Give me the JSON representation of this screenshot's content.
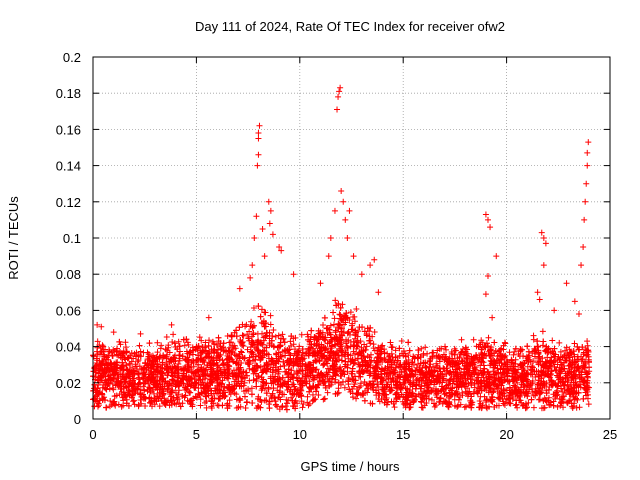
{
  "chart_data": {
    "type": "scatter",
    "title": "Day 111 of 2024, Rate Of TEC Index for receiver ofw2",
    "xlabel": "GPS time / hours",
    "ylabel": "ROTI / TECUs",
    "xlim": [
      0,
      25
    ],
    "ylim": [
      0,
      0.2
    ],
    "xticks": [
      "0",
      "5",
      "10",
      "15",
      "20",
      "25"
    ],
    "yticks": [
      "0",
      "0.02",
      "0.04",
      "0.06",
      "0.08",
      "0.1",
      "0.12",
      "0.14",
      "0.16",
      "0.18",
      "0.2"
    ],
    "grid": true,
    "marker": "+",
    "series_color": "#ff0000",
    "x_range_observed": [
      0,
      24
    ],
    "baseline_profile": {
      "x": [
        0,
        1,
        2,
        3,
        4,
        5,
        6,
        7,
        7.5,
        8,
        8.5,
        9,
        10,
        11,
        11.5,
        12,
        12.5,
        13,
        13.5,
        14,
        15,
        16,
        17,
        18,
        19,
        20,
        21,
        21.5,
        22,
        23,
        24
      ],
      "upper": [
        0.042,
        0.04,
        0.035,
        0.035,
        0.04,
        0.042,
        0.045,
        0.05,
        0.06,
        0.065,
        0.06,
        0.05,
        0.045,
        0.055,
        0.065,
        0.07,
        0.065,
        0.055,
        0.05,
        0.04,
        0.035,
        0.035,
        0.035,
        0.04,
        0.045,
        0.04,
        0.04,
        0.045,
        0.04,
        0.04,
        0.04
      ],
      "lower": [
        0.005,
        0.006,
        0.007,
        0.007,
        0.007,
        0.006,
        0.006,
        0.006,
        0.006,
        0.006,
        0.006,
        0.005,
        0.005,
        0.01,
        0.012,
        0.012,
        0.012,
        0.01,
        0.008,
        0.007,
        0.006,
        0.006,
        0.006,
        0.006,
        0.006,
        0.006,
        0.006,
        0.006,
        0.006,
        0.006,
        0.006
      ]
    },
    "outliers": [
      {
        "x": 0.2,
        "y": 0.052
      },
      {
        "x": 0.4,
        "y": 0.051
      },
      {
        "x": 1.0,
        "y": 0.048
      },
      {
        "x": 2.3,
        "y": 0.047
      },
      {
        "x": 3.8,
        "y": 0.052
      },
      {
        "x": 5.6,
        "y": 0.056
      },
      {
        "x": 7.1,
        "y": 0.072
      },
      {
        "x": 7.6,
        "y": 0.078
      },
      {
        "x": 7.7,
        "y": 0.085
      },
      {
        "x": 7.8,
        "y": 0.1
      },
      {
        "x": 7.9,
        "y": 0.112
      },
      {
        "x": 7.95,
        "y": 0.14
      },
      {
        "x": 8.0,
        "y": 0.146
      },
      {
        "x": 8.0,
        "y": 0.158
      },
      {
        "x": 8.05,
        "y": 0.162
      },
      {
        "x": 8.0,
        "y": 0.155
      },
      {
        "x": 8.2,
        "y": 0.105
      },
      {
        "x": 8.3,
        "y": 0.09
      },
      {
        "x": 8.5,
        "y": 0.12
      },
      {
        "x": 8.6,
        "y": 0.115
      },
      {
        "x": 8.7,
        "y": 0.102
      },
      {
        "x": 8.55,
        "y": 0.108
      },
      {
        "x": 9.0,
        "y": 0.095
      },
      {
        "x": 9.1,
        "y": 0.093
      },
      {
        "x": 9.7,
        "y": 0.08
      },
      {
        "x": 11.0,
        "y": 0.075
      },
      {
        "x": 11.4,
        "y": 0.09
      },
      {
        "x": 11.5,
        "y": 0.1
      },
      {
        "x": 11.7,
        "y": 0.115
      },
      {
        "x": 11.8,
        "y": 0.171
      },
      {
        "x": 11.85,
        "y": 0.178
      },
      {
        "x": 11.9,
        "y": 0.181
      },
      {
        "x": 11.95,
        "y": 0.183
      },
      {
        "x": 12.0,
        "y": 0.126
      },
      {
        "x": 12.1,
        "y": 0.12
      },
      {
        "x": 12.2,
        "y": 0.11
      },
      {
        "x": 12.3,
        "y": 0.1
      },
      {
        "x": 12.4,
        "y": 0.115
      },
      {
        "x": 12.6,
        "y": 0.09
      },
      {
        "x": 13.0,
        "y": 0.08
      },
      {
        "x": 13.4,
        "y": 0.085
      },
      {
        "x": 13.6,
        "y": 0.088
      },
      {
        "x": 13.8,
        "y": 0.07
      },
      {
        "x": 19.0,
        "y": 0.113
      },
      {
        "x": 19.1,
        "y": 0.11
      },
      {
        "x": 19.2,
        "y": 0.106
      },
      {
        "x": 19.1,
        "y": 0.079
      },
      {
        "x": 19.0,
        "y": 0.069
      },
      {
        "x": 19.5,
        "y": 0.09
      },
      {
        "x": 19.3,
        "y": 0.056
      },
      {
        "x": 21.5,
        "y": 0.07
      },
      {
        "x": 21.7,
        "y": 0.103
      },
      {
        "x": 21.8,
        "y": 0.1
      },
      {
        "x": 21.9,
        "y": 0.097
      },
      {
        "x": 21.8,
        "y": 0.085
      },
      {
        "x": 21.6,
        "y": 0.066
      },
      {
        "x": 22.3,
        "y": 0.06
      },
      {
        "x": 22.9,
        "y": 0.075
      },
      {
        "x": 23.3,
        "y": 0.065
      },
      {
        "x": 23.6,
        "y": 0.085
      },
      {
        "x": 23.7,
        "y": 0.095
      },
      {
        "x": 23.75,
        "y": 0.11
      },
      {
        "x": 23.8,
        "y": 0.12
      },
      {
        "x": 23.85,
        "y": 0.13
      },
      {
        "x": 23.9,
        "y": 0.14
      },
      {
        "x": 23.9,
        "y": 0.147
      },
      {
        "x": 23.95,
        "y": 0.153
      },
      {
        "x": 23.5,
        "y": 0.058
      }
    ]
  }
}
